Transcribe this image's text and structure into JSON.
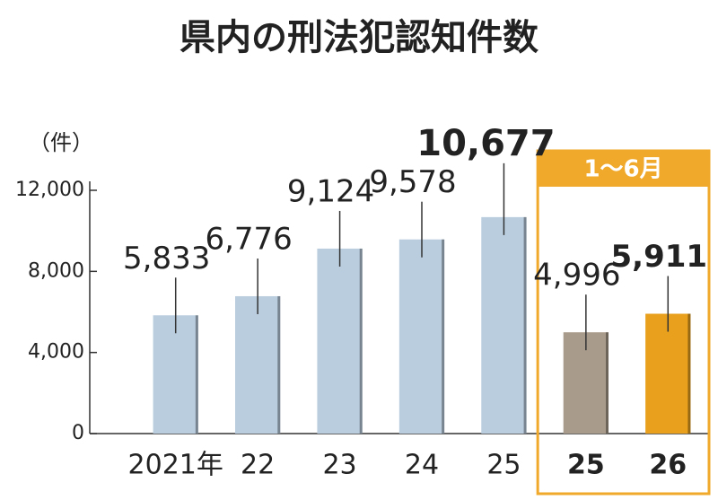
{
  "chart_data": {
    "type": "bar",
    "title": "県内の刑法犯認知件数",
    "y_unit": "（件）",
    "categories": [
      "2021年",
      "22",
      "23",
      "24",
      "25",
      "25",
      "26"
    ],
    "values": [
      5833,
      6776,
      9124,
      9578,
      10677,
      4996,
      5911
    ],
    "value_labels": [
      "5,833",
      "6,776",
      "9,124",
      "9,578",
      "10,677",
      "4,996",
      "5,911"
    ],
    "colors": [
      "#b9cddf",
      "#b9cddf",
      "#b9cddf",
      "#b9cddf",
      "#b9cddf",
      "#a99b8b",
      "#e9a11d"
    ],
    "period_labels": [
      null,
      null,
      null,
      null,
      null,
      "1〜6月",
      "1〜6月"
    ],
    "highlight_color": "#f0a92a",
    "ylim": [
      0,
      12000
    ],
    "yticks": [
      {
        "value": 0,
        "label": "0"
      },
      {
        "value": 4000,
        "label": "4,000"
      },
      {
        "value": 8000,
        "label": "8,000"
      },
      {
        "value": 12000,
        "label": "12,000"
      }
    ]
  }
}
